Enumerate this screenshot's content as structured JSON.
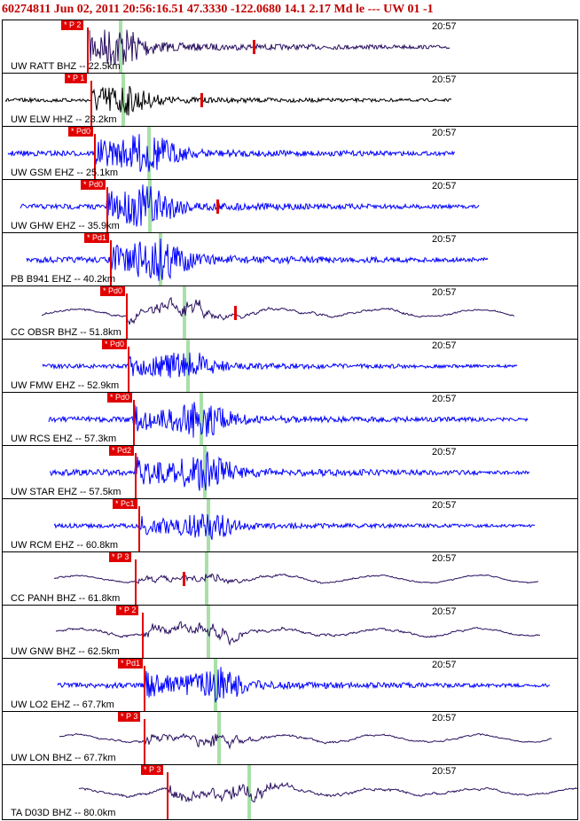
{
  "header": {
    "text": "60274811 Jun 02, 2011 20:56:16.51   47.3330 -122.0680 14.1 2.17 Md le ---  UW 01   -1"
  },
  "colors": {
    "header": "#c00000",
    "pick_marker": "#e00000",
    "s_marker": "#a8e0a8",
    "trace_blue": "#0000ff",
    "trace_dark": "#2a1060",
    "trace_black": "#000000"
  },
  "traces": [
    {
      "label": "UW RATT BHZ -- 22.5km",
      "time": "20:57",
      "pick": "* P 2",
      "color": "dark"
    },
    {
      "label": "UW ELW HHZ -- 23.2km",
      "time": "20:57",
      "pick": "* P 1",
      "color": "black"
    },
    {
      "label": "UW GSM EHZ -- 25.1km",
      "time": "20:57",
      "pick": "* Pd0",
      "color": "blue"
    },
    {
      "label": "UW GHW EHZ -- 35.9km",
      "time": "20:57",
      "pick": "* Pd0",
      "color": "blue"
    },
    {
      "label": "PB B941 EHZ -- 40.2km",
      "time": "20:57",
      "pick": "* Pd1",
      "color": "blue"
    },
    {
      "label": "CC OBSR BHZ -- 51.8km",
      "time": "20:57",
      "pick": "* Pd0",
      "color": "dark"
    },
    {
      "label": "UW FMW EHZ -- 52.9km",
      "time": "20:57",
      "pick": "* Pd0",
      "color": "blue"
    },
    {
      "label": "UW RCS EHZ -- 57.3km",
      "time": "20:57",
      "pick": "* Pd0",
      "color": "blue"
    },
    {
      "label": "UW STAR EHZ -- 57.5km",
      "time": "20:57",
      "pick": "* Pd2",
      "color": "blue"
    },
    {
      "label": "UW RCM EHZ -- 60.8km",
      "time": "20:57",
      "pick": "* Pc1",
      "color": "blue"
    },
    {
      "label": "CC PANH BHZ -- 61.8km",
      "time": "20:57",
      "pick": "* P 3",
      "color": "dark"
    },
    {
      "label": "UW GNW BHZ -- 62.5km",
      "time": "20:57",
      "pick": "* P 2",
      "color": "dark"
    },
    {
      "label": "UW LO2 EHZ -- 67.7km",
      "time": "20:57",
      "pick": "* Pd1",
      "color": "blue"
    },
    {
      "label": "UW LON BHZ -- 67.7km",
      "time": "20:57",
      "pick": "* P 3",
      "color": "dark"
    },
    {
      "label": "TA D03D BHZ -- 80.0km",
      "time": "20:57",
      "pick": "* P 3",
      "color": "dark"
    }
  ]
}
